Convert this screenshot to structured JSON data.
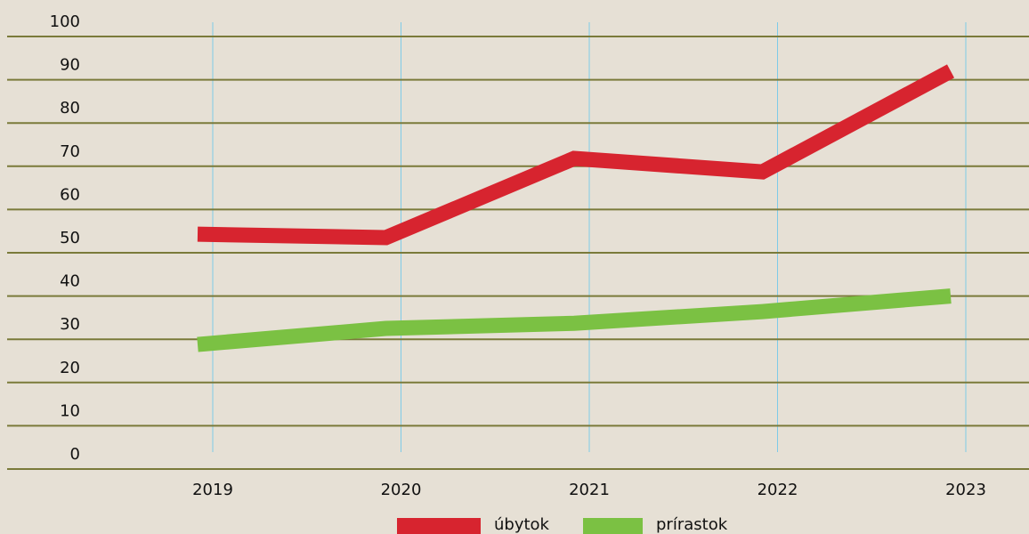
{
  "chart_data": {
    "type": "line",
    "categories": [
      "2019",
      "2020",
      "2021",
      "2022",
      "2023"
    ],
    "series": [
      {
        "name": "úbytok",
        "color": "#d7242f",
        "values": [
          54.3,
          53.5,
          71.8,
          68.7,
          92
        ]
      },
      {
        "name": "prírastok",
        "color": "#7bc143",
        "values": [
          28.8,
          32.5,
          33.7,
          36.4,
          40
        ]
      }
    ],
    "ylim": [
      0,
      100
    ],
    "yticks": [
      0,
      10,
      20,
      30,
      40,
      50,
      60,
      70,
      80,
      90,
      100
    ],
    "grid": true
  }
}
